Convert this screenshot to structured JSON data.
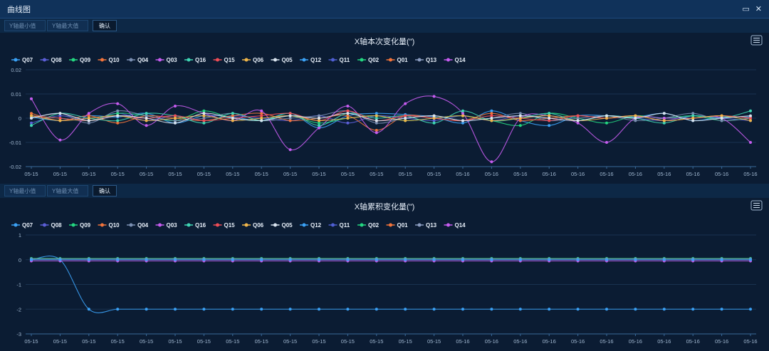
{
  "window": {
    "title": "曲线图",
    "restore_icon": "restore-icon",
    "close_icon": "close-icon"
  },
  "toolbar_top": {
    "ymin_placeholder": "Y轴最小值",
    "ymax_placeholder": "Y轴最大值",
    "confirm_label": "确认"
  },
  "toolbar_bottom": {
    "ymin_placeholder": "Y轴最小值",
    "ymax_placeholder": "Y轴最大值",
    "confirm_label": "确认"
  },
  "colors": {
    "Q07": "#3ba1f5",
    "Q08": "#5b5ed6",
    "Q09": "#23d680",
    "Q10": "#f2743b",
    "Q04": "#7a8fb2",
    "Q03": "#c65cf0",
    "Q16": "#3fd6b4",
    "Q15": "#ef4d56",
    "Q06": "#f0b64a",
    "Q05": "#d9e4ef",
    "Q12": "#3ba1f5",
    "Q11": "#4f5fd2",
    "Q02": "#23d680",
    "Q01": "#f2743b",
    "Q13": "#8a9cc0",
    "Q14": "#c65cf0"
  },
  "chart_data": [
    {
      "type": "line",
      "title": "X轴本次变化量(\")",
      "legend_position": "top-left",
      "grid": true,
      "ylim": [
        -0.02,
        0.02
      ],
      "yticks": [
        "0.02",
        "0.01",
        "0",
        "-0.01",
        "-0.02"
      ],
      "x": [
        "05-15",
        "05-15",
        "05-15",
        "05-15",
        "05-15",
        "05-15",
        "05-15",
        "05-15",
        "05-15",
        "05-15",
        "05-15",
        "05-15",
        "05-15",
        "05-15",
        "05-15",
        "05-16",
        "05-16",
        "05-16",
        "05-16",
        "05-16",
        "05-16",
        "05-16",
        "05-16",
        "05-16",
        "05-16",
        "05-16"
      ],
      "series": [
        {
          "name": "Q07",
          "values": [
            0.0005,
            -0.001,
            0.001,
            0.0005,
            0.002,
            -0.002,
            0.001,
            0.0005,
            -0.001,
            0.002,
            -0.004,
            0.001,
            0.002,
            0.0015,
            0.0005,
            -0.002,
            0.003,
            -0.001,
            -0.003,
            0.001,
            0.001,
            0.0005,
            0.002,
            -0.001,
            0.0005,
            0.0005
          ]
        },
        {
          "name": "Q08",
          "values": [
            -0.002,
            0.001,
            -0.001,
            0.002,
            -0.001,
            0.001,
            -0.001,
            0.001,
            0.0,
            -0.001,
            0.001,
            -0.002,
            0.001,
            0.0,
            -0.001,
            0.001,
            -0.001,
            0.001,
            0.0,
            -0.001,
            0.001,
            0.0,
            -0.001,
            0.001,
            0.0,
            -0.001
          ]
        },
        {
          "name": "Q09",
          "values": [
            0.001,
            0.0,
            -0.001,
            0.002,
            0.001,
            -0.001,
            0.003,
            0.0,
            -0.001,
            0.001,
            -0.002,
            0.0,
            0.001,
            -0.001,
            0.0,
            0.001,
            -0.001,
            -0.003,
            0.002,
            0.0,
            -0.002,
            0.001,
            0.0,
            0.001,
            -0.001,
            0.0
          ]
        },
        {
          "name": "Q10",
          "values": [
            0.002,
            -0.001,
            0.001,
            -0.002,
            0.001,
            0.0,
            -0.001,
            0.001,
            0.002,
            -0.001,
            0.0,
            0.001,
            -0.005,
            0.001,
            0.0,
            -0.001,
            0.002,
            -0.001,
            0.0,
            0.001,
            0.0,
            0.001,
            -0.001,
            0.0,
            0.001,
            0.0
          ]
        },
        {
          "name": "Q04",
          "values": [
            0.0,
            0.002,
            -0.002,
            0.003,
            0.001,
            -0.001,
            0.0,
            0.002,
            -0.001,
            0.0,
            0.001,
            0.003,
            -0.002,
            0.0,
            0.001,
            -0.001,
            0.0,
            0.002,
            -0.001,
            0.0,
            0.001,
            -0.001,
            0.0,
            0.002,
            -0.001,
            0.0
          ]
        },
        {
          "name": "Q03",
          "values": [
            0.008,
            -0.009,
            0.002,
            0.006,
            -0.003,
            0.005,
            0.002,
            -0.001,
            0.003,
            -0.013,
            -0.004,
            0.005,
            -0.006,
            0.006,
            0.009,
            0.002,
            -0.018,
            0.0,
            0.001,
            -0.002,
            -0.01,
            0.0,
            0.0,
            0.0,
            0.0,
            -0.01
          ]
        },
        {
          "name": "Q16",
          "values": [
            -0.003,
            0.002,
            0.0,
            -0.001,
            0.002,
            0.001,
            -0.002,
            0.002,
            -0.001,
            0.002,
            -0.003,
            0.002,
            0.0,
            0.001,
            -0.002,
            0.003,
            -0.001,
            0.0,
            0.002,
            -0.001,
            0.001,
            0.0,
            -0.002,
            0.001,
            0.0,
            0.003
          ]
        },
        {
          "name": "Q15",
          "values": [
            0.001,
            0.0,
            -0.001,
            0.001,
            0.0,
            0.001,
            -0.001,
            0.0,
            0.001,
            0.002,
            -0.001,
            0.003,
            -0.001,
            0.001,
            0.0,
            -0.001,
            0.001,
            0.0,
            -0.001,
            0.001,
            0.0,
            0.001,
            -0.001,
            0.0,
            0.001,
            0.0
          ]
        },
        {
          "name": "Q06",
          "values": [
            0.001,
            -0.001,
            0.0,
            0.001,
            -0.001,
            0.0,
            0.001,
            -0.001,
            0.0,
            0.001,
            -0.001,
            0.0,
            0.001,
            -0.001,
            0.0,
            0.001,
            -0.001,
            0.0,
            0.001,
            -0.001,
            0.0,
            0.001,
            -0.001,
            0.0,
            0.001,
            -0.001
          ]
        },
        {
          "name": "Q05",
          "values": [
            0.0,
            0.002,
            -0.001,
            0.001,
            0.0,
            -0.002,
            0.002,
            0.0,
            -0.001,
            0.001,
            0.0,
            0.002,
            -0.001,
            0.0,
            0.001,
            -0.001,
            0.0,
            0.001,
            0.0,
            -0.001,
            0.001,
            0.0,
            0.002,
            -0.001,
            0.0,
            0.001
          ]
        }
      ]
    },
    {
      "type": "line",
      "title": "X轴累积变化量(\")",
      "legend_position": "top-left",
      "grid": true,
      "ylim": [
        -3,
        1
      ],
      "yticks": [
        "1",
        "0",
        "-1",
        "-2",
        "-3"
      ],
      "x": [
        "05-15",
        "05-15",
        "05-15",
        "05-15",
        "05-15",
        "05-15",
        "05-15",
        "05-15",
        "05-15",
        "05-15",
        "05-15",
        "05-15",
        "05-15",
        "05-15",
        "05-15",
        "05-16",
        "05-16",
        "05-16",
        "05-16",
        "05-16",
        "05-16",
        "05-16",
        "05-16",
        "05-16",
        "05-16",
        "05-16"
      ],
      "series": [
        {
          "name": "Q07",
          "values": [
            0,
            0,
            -2,
            -2,
            -2,
            -2,
            -2,
            -2,
            -2,
            -2,
            -2,
            -2,
            -2,
            -2,
            -2,
            -2,
            -2,
            -2,
            -2,
            -2,
            -2,
            -2,
            -2,
            -2,
            -2,
            -2
          ]
        },
        {
          "name": "Q09",
          "values": [
            0.05,
            0.05,
            0.05,
            0.05,
            0.05,
            0.05,
            0.05,
            0.05,
            0.05,
            0.05,
            0.05,
            0.05,
            0.05,
            0.05,
            0.05,
            0.05,
            0.05,
            0.05,
            0.05,
            0.05,
            0.05,
            0.05,
            0.05,
            0.05,
            0.05,
            0.05
          ]
        },
        {
          "name": "Q03",
          "values": [
            -0.05,
            -0.05,
            -0.05,
            -0.05,
            -0.05,
            -0.05,
            -0.05,
            -0.05,
            -0.05,
            -0.05,
            -0.05,
            -0.05,
            -0.05,
            -0.05,
            -0.05,
            -0.05,
            -0.05,
            -0.05,
            -0.05,
            -0.05,
            -0.05,
            -0.05,
            -0.05,
            -0.05,
            -0.05,
            -0.05
          ]
        },
        {
          "name": "Q04",
          "values": [
            0.03,
            0.03,
            0.03,
            0.03,
            0.03,
            0.03,
            0.03,
            0.03,
            0.03,
            0.03,
            0.03,
            0.03,
            0.03,
            0.03,
            0.03,
            0.03,
            0.03,
            0.03,
            0.03,
            0.03,
            0.03,
            0.03,
            0.03,
            0.03,
            0.03,
            0.03
          ]
        },
        {
          "name": "Q12",
          "values": [
            0,
            0,
            0,
            0,
            0,
            0,
            0,
            0,
            0,
            0,
            0,
            0,
            0,
            0,
            0,
            0,
            0,
            0,
            0,
            0,
            0,
            0,
            0,
            0,
            0,
            0
          ]
        }
      ]
    }
  ],
  "legend": [
    "Q07",
    "Q08",
    "Q09",
    "Q10",
    "Q04",
    "Q03",
    "Q16",
    "Q15",
    "Q06",
    "Q05",
    "Q12",
    "Q11",
    "Q02",
    "Q01",
    "Q13",
    "Q14"
  ]
}
